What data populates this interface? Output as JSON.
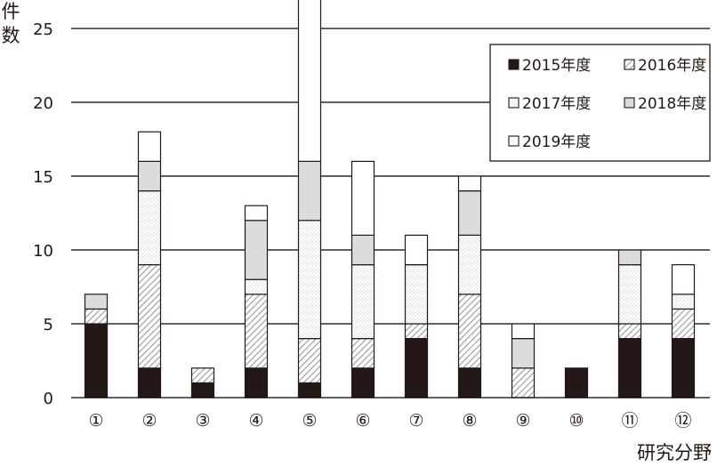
{
  "chart_data": {
    "type": "bar",
    "stacked": true,
    "ylabel": "件数",
    "xlabel": "研究分野",
    "categories": [
      "①",
      "②",
      "③",
      "④",
      "⑤",
      "⑥",
      "⑦",
      "⑧",
      "⑨",
      "⑩",
      "⑪",
      "⑫"
    ],
    "yticks": [
      0,
      5,
      10,
      15,
      20,
      25
    ],
    "ylim": [
      0,
      27
    ],
    "grid": true,
    "legend_position": "top-right",
    "series": [
      {
        "name": "2015年度",
        "values": [
          5,
          2,
          1,
          2,
          1,
          2,
          4,
          2,
          0,
          2,
          4,
          4
        ]
      },
      {
        "name": "2016年度",
        "values": [
          1,
          7,
          1,
          5,
          3,
          2,
          1,
          5,
          2,
          0,
          1,
          2
        ]
      },
      {
        "name": "2017年度",
        "values": [
          0,
          5,
          0,
          1,
          8,
          5,
          4,
          4,
          0,
          0,
          4,
          1
        ]
      },
      {
        "name": "2018年度",
        "values": [
          1,
          2,
          0,
          4,
          4,
          2,
          0,
          3,
          2,
          0,
          1,
          0
        ]
      },
      {
        "name": "2019年度",
        "values": [
          0,
          2,
          0,
          1,
          11,
          5,
          2,
          1,
          1,
          0,
          0,
          2
        ]
      }
    ],
    "legend_order": [
      0,
      1,
      2,
      3,
      4
    ]
  },
  "colors": {
    "s2015": "#231815",
    "s2016_bg": "#ffffff",
    "s2016_hatch": "#9a9a9a",
    "s2017_bg": "#ffffff",
    "s2017_dot": "#c4c4c4",
    "s2018": "#dcdcdc",
    "s2019": "#ffffff",
    "outline": "#231815",
    "grid": "#000000",
    "text": "#231815"
  }
}
